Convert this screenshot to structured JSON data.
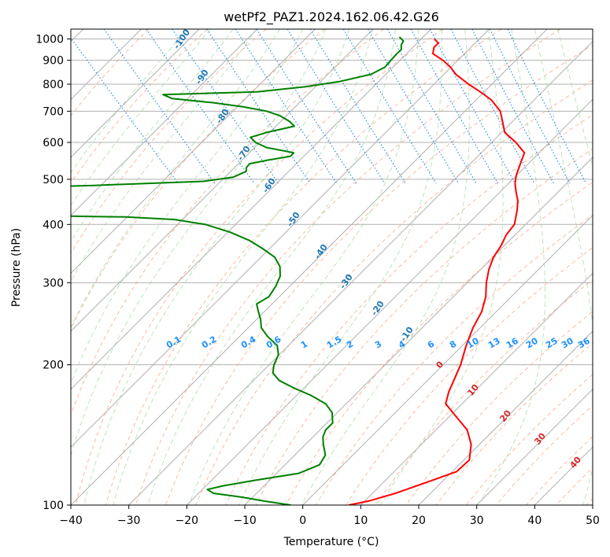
{
  "chart_data": {
    "type": "skew-t",
    "title": "wetPf2_PAZ1.2024.162.06.42.G26",
    "xlabel": "Temperature (°C)",
    "ylabel": "Pressure (hPa)",
    "xlim": [
      -40,
      50
    ],
    "ylim": [
      1050,
      100
    ],
    "x_ticks": [
      "−40",
      "−30",
      "−20",
      "−10",
      "0",
      "10",
      "20",
      "30",
      "40",
      "50"
    ],
    "y_ticks": [
      "100",
      "200",
      "300",
      "400",
      "500",
      "600",
      "700",
      "800",
      "900",
      "1000"
    ],
    "grid": true,
    "colors": {
      "temperature": "#ff0000",
      "dewpoint": "#008000",
      "dry_adiabat": "#f4a582",
      "moist_adiabat": "#a1d99b",
      "mixing_ratio": "#1e88e5",
      "isotherm": "#999999"
    },
    "series": [
      {
        "points": [
          [
            1000,
            21.0
          ],
          [
            980,
            21.0
          ],
          [
            960,
            19.5
          ],
          [
            930,
            18.2
          ],
          [
            900,
            18.8
          ],
          [
            870,
            18.9
          ],
          [
            840,
            18.6
          ],
          [
            800,
            19.1
          ],
          [
            770,
            19.8
          ],
          [
            740,
            20.3
          ],
          [
            700,
            19.9
          ],
          [
            660,
            18.3
          ],
          [
            630,
            17.0
          ],
          [
            600,
            17.2
          ],
          [
            570,
            16.9
          ],
          [
            540,
            14.3
          ],
          [
            510,
            11.6
          ],
          [
            490,
            10.0
          ],
          [
            470,
            8.7
          ],
          [
            450,
            7.5
          ],
          [
            430,
            5.8
          ],
          [
            400,
            2.8
          ],
          [
            380,
            -0.4
          ],
          [
            360,
            -3.2
          ],
          [
            340,
            -6.5
          ],
          [
            320,
            -9.4
          ],
          [
            300,
            -12.1
          ],
          [
            280,
            -14.6
          ],
          [
            260,
            -17.9
          ],
          [
            240,
            -22.2
          ],
          [
            220,
            -26.4
          ],
          [
            200,
            -30.7
          ],
          [
            185,
            -34.6
          ],
          [
            175,
            -37.4
          ],
          [
            165,
            -40.0
          ],
          [
            155,
            -40.4
          ],
          [
            145,
            -40.8
          ],
          [
            135,
            -42.6
          ],
          [
            125,
            -45.6
          ],
          [
            118,
            -49.8
          ],
          [
            112,
            -56.7
          ],
          [
            106,
            -64.1
          ],
          [
            102,
            -70.1
          ],
          [
            100,
            -74.2
          ]
        ]
      },
      {
        "points": [
          [
            1010,
            15.3
          ],
          [
            990,
            15.3
          ],
          [
            970,
            14.2
          ],
          [
            950,
            13.5
          ],
          [
            930,
            12.0
          ],
          [
            900,
            9.8
          ],
          [
            870,
            7.6
          ],
          [
            840,
            4.0
          ],
          [
            810,
            -2.8
          ],
          [
            790,
            -9.5
          ],
          [
            770,
            -18.7
          ],
          [
            760,
            -35.4
          ],
          [
            745,
            -34.5
          ],
          [
            730,
            -28.2
          ],
          [
            715,
            -23.6
          ],
          [
            700,
            -20.4
          ],
          [
            685,
            -18.9
          ],
          [
            665,
            -18.2
          ],
          [
            650,
            -18.2
          ],
          [
            630,
            -24.1
          ],
          [
            615,
            -27.7
          ],
          [
            600,
            -27.7
          ],
          [
            585,
            -26.7
          ],
          [
            570,
            -22.9
          ],
          [
            560,
            -24.1
          ],
          [
            550,
            -28.5
          ],
          [
            540,
            -32.4
          ],
          [
            530,
            -33.6
          ],
          [
            520,
            -34.3
          ],
          [
            505,
            -37.6
          ],
          [
            495,
            -43.4
          ],
          [
            485,
            -63.0
          ],
          [
            475,
            -90.0
          ]
        ]
      },
      {
        "points": [
          [
            420,
            -90.0
          ],
          [
            415,
            -63.0
          ],
          [
            410,
            -55.0
          ],
          [
            400,
            -50.5
          ],
          [
            385,
            -47.6
          ],
          [
            370,
            -45.7
          ],
          [
            355,
            -44.8
          ],
          [
            340,
            -44.2
          ],
          [
            325,
            -44.9
          ],
          [
            310,
            -46.5
          ],
          [
            295,
            -49.0
          ],
          [
            280,
            -52.0
          ],
          [
            270,
            -55.4
          ],
          [
            260,
            -56.4
          ],
          [
            250,
            -57.4
          ],
          [
            240,
            -58.7
          ],
          [
            230,
            -59.1
          ],
          [
            220,
            -59.0
          ],
          [
            210,
            -60.4
          ],
          [
            200,
            -62.9
          ],
          [
            192,
            -64.5
          ],
          [
            185,
            -64.7
          ],
          [
            178,
            -63.4
          ],
          [
            172,
            -61.8
          ],
          [
            165,
            -60.7
          ],
          [
            158,
            -61.1
          ],
          [
            150,
            -62.8
          ],
          [
            145,
            -65.2
          ],
          [
            140,
            -66.9
          ],
          [
            135,
            -68.1
          ],
          [
            128,
            -69.6
          ],
          [
            122,
            -72.3
          ],
          [
            117,
            -77.3
          ],
          [
            113,
            -86.2
          ],
          [
            110,
            -92.5
          ],
          [
            108,
            -95.9
          ],
          [
            106,
            -95.5
          ],
          [
            104,
            -91.3
          ],
          [
            102,
            -88.1
          ],
          [
            100,
            -84.2
          ]
        ]
      }
    ],
    "dry_adiabat_labels": [
      "-100",
      "-90",
      "-80",
      "-70",
      "-60",
      "-50",
      "-40",
      "-30",
      "-20",
      "-10"
    ],
    "moist_adiabat_labels": [
      "0",
      "10",
      "20",
      "30",
      "40"
    ],
    "mixing_ratio_labels": [
      "0.1",
      "0.2",
      "0.4",
      "0.6",
      "1",
      "1.5",
      "2",
      "3",
      "4",
      "6",
      "8",
      "10",
      "13",
      "16",
      "20",
      "25",
      "30",
      "36"
    ]
  }
}
